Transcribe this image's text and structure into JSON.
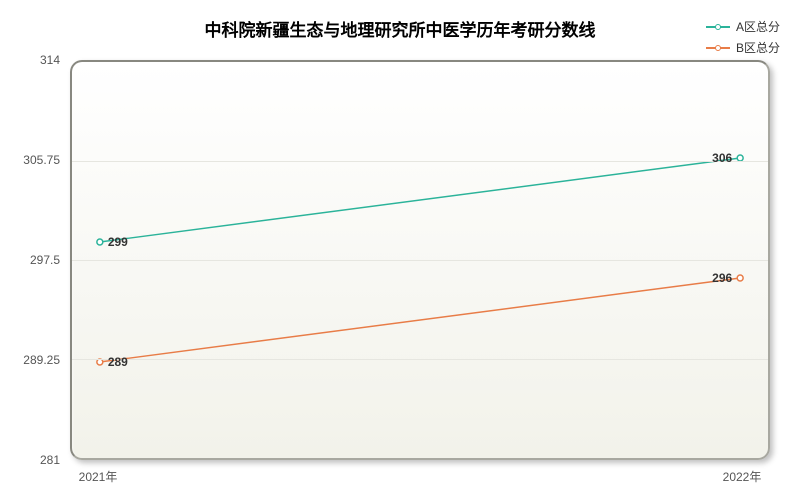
{
  "chart": {
    "type": "line",
    "title": "中科院新疆生态与地理研究所中医学历年考研分数线",
    "title_fontsize": 17,
    "title_color": "#000000",
    "background_color": "#ffffff",
    "plot_bg_gradient_top": "#ffffff",
    "plot_bg_gradient_bottom": "#f2f2ea",
    "plot_border_color": "#a8a8a0",
    "plot_border_radius": 12,
    "grid_color": "#e6e6e0",
    "x": {
      "categories": [
        "2021年",
        "2022年"
      ],
      "positions_pct": [
        4,
        96
      ]
    },
    "y": {
      "min": 281,
      "max": 314,
      "ticks": [
        281,
        289.25,
        297.5,
        305.75,
        314
      ],
      "tick_labels": [
        "281",
        "289.25",
        "297.5",
        "305.75",
        "314"
      ]
    },
    "series": [
      {
        "name": "A区总分",
        "color": "#2bb39a",
        "values": [
          299,
          306
        ],
        "line_width": 1.5,
        "marker": "circle",
        "marker_size": 6
      },
      {
        "name": "B区总分",
        "color": "#e87c47",
        "values": [
          289,
          296
        ],
        "line_width": 1.5,
        "marker": "circle",
        "marker_size": 6
      }
    ],
    "label_fontsize": 12,
    "label_color": "#333333",
    "axis_label_color": "#555555",
    "legend": {
      "position": "top-right",
      "fontsize": 12
    }
  }
}
